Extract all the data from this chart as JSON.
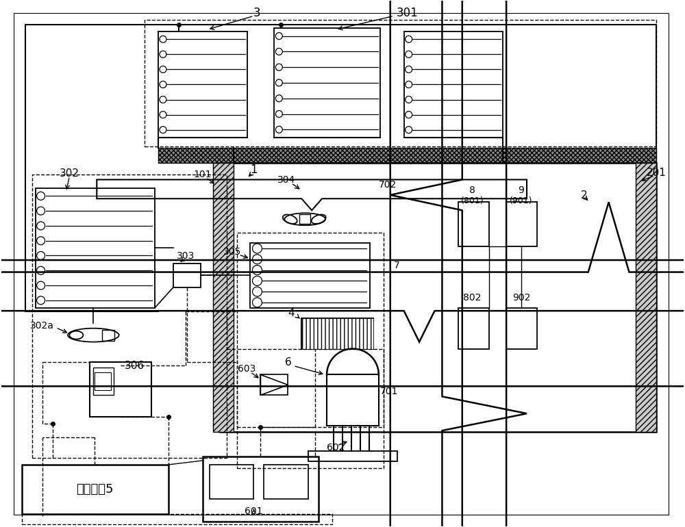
{
  "bg_color": "#ffffff",
  "line_color": "#000000",
  "figsize": [
    10.0,
    7.7
  ],
  "dpi": 100
}
